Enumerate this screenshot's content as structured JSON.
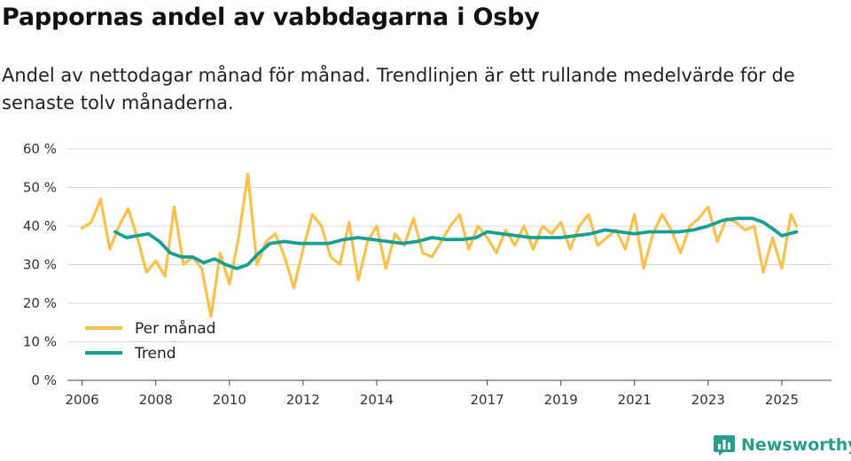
{
  "title": "Pappornas andel av vabbdagarna i Osby",
  "subtitle": "Andel av nettodagar månad för månad. Trendlinjen är ett rullande medelvärde för de senaste tolv månaderna.",
  "brand": {
    "name": "Newsworthy"
  },
  "colors": {
    "monthly": "#FDC04C",
    "trend": "#14A095",
    "grid": "#d9d9d9",
    "axis": "#444444",
    "brand": "#2a9d8f"
  },
  "chart_data": {
    "type": "line",
    "title": "Pappornas andel av vabbdagarna i Osby",
    "xlabel": "",
    "ylabel": "",
    "ylim": [
      0,
      60
    ],
    "xlim": [
      2005.6,
      2026.35
    ],
    "y_ticks": [
      {
        "value": 0,
        "label": "0 %"
      },
      {
        "value": 10,
        "label": "10 %"
      },
      {
        "value": 20,
        "label": "20 %"
      },
      {
        "value": 30,
        "label": "30 %"
      },
      {
        "value": 40,
        "label": "40 %"
      },
      {
        "value": 50,
        "label": "50 %"
      },
      {
        "value": 60,
        "label": "60 %"
      }
    ],
    "x_ticks": [
      {
        "value": 2006,
        "label": "2006"
      },
      {
        "value": 2008,
        "label": "2008"
      },
      {
        "value": 2010,
        "label": "2010"
      },
      {
        "value": 2012,
        "label": "2012"
      },
      {
        "value": 2014,
        "label": "2014"
      },
      {
        "value": 2017,
        "label": "2017"
      },
      {
        "value": 2019,
        "label": "2019"
      },
      {
        "value": 2021,
        "label": "2021"
      },
      {
        "value": 2023,
        "label": "2023"
      },
      {
        "value": 2025,
        "label": "2025"
      }
    ],
    "legend": {
      "position": "bottom-left",
      "entries": [
        "Per månad",
        "Trend"
      ]
    },
    "series": [
      {
        "name": "Per månad",
        "x": [
          2006.0,
          2006.25,
          2006.5,
          2006.75,
          2007.0,
          2007.25,
          2007.5,
          2007.75,
          2008.0,
          2008.25,
          2008.5,
          2008.75,
          2009.0,
          2009.25,
          2009.5,
          2009.75,
          2010.0,
          2010.25,
          2010.5,
          2010.75,
          2011.0,
          2011.25,
          2011.5,
          2011.75,
          2012.0,
          2012.25,
          2012.5,
          2012.75,
          2013.0,
          2013.25,
          2013.5,
          2013.75,
          2014.0,
          2014.25,
          2014.5,
          2014.75,
          2015.0,
          2015.25,
          2015.5,
          2015.75,
          2016.0,
          2016.25,
          2016.5,
          2016.75,
          2017.0,
          2017.25,
          2017.5,
          2017.75,
          2018.0,
          2018.25,
          2018.5,
          2018.75,
          2019.0,
          2019.25,
          2019.5,
          2019.75,
          2020.0,
          2020.25,
          2020.5,
          2020.75,
          2021.0,
          2021.25,
          2021.5,
          2021.75,
          2022.0,
          2022.25,
          2022.5,
          2022.75,
          2023.0,
          2023.25,
          2023.5,
          2023.75,
          2024.0,
          2024.25,
          2024.5,
          2024.75,
          2025.0,
          2025.25,
          2025.4
        ],
        "values": [
          39.5,
          41,
          47,
          34,
          40,
          44.5,
          37,
          28,
          31,
          27,
          45,
          30,
          32,
          29,
          16.5,
          33,
          25,
          37,
          53.5,
          30,
          36,
          38,
          32,
          24,
          34,
          43,
          40,
          32,
          30,
          41,
          26,
          36,
          40,
          29,
          38,
          35,
          42,
          33,
          32,
          36,
          40,
          43,
          34,
          40,
          37,
          33,
          39,
          35,
          40,
          34,
          40,
          38,
          41,
          34,
          40,
          43,
          35,
          37,
          39,
          34,
          43,
          29,
          38,
          43,
          39,
          33,
          40,
          42,
          45,
          36,
          42,
          41,
          39,
          40,
          28,
          37,
          29,
          43,
          40
        ]
      },
      {
        "name": "Trend",
        "x": [
          2006.9,
          2007.2,
          2007.5,
          2007.8,
          2008.1,
          2008.4,
          2008.7,
          2009.0,
          2009.3,
          2009.6,
          2009.9,
          2010.2,
          2010.5,
          2010.8,
          2011.1,
          2011.5,
          2011.9,
          2012.3,
          2012.7,
          2013.1,
          2013.5,
          2013.9,
          2014.3,
          2014.7,
          2015.1,
          2015.5,
          2015.9,
          2016.3,
          2016.7,
          2017.0,
          2017.4,
          2017.8,
          2018.2,
          2018.6,
          2019.0,
          2019.4,
          2019.8,
          2020.2,
          2020.6,
          2021.0,
          2021.4,
          2021.8,
          2022.2,
          2022.6,
          2023.0,
          2023.4,
          2023.8,
          2024.2,
          2024.5,
          2024.8,
          2025.0,
          2025.2,
          2025.4
        ],
        "values": [
          38.5,
          37,
          37.5,
          38,
          36,
          33,
          32,
          32,
          30.5,
          31.5,
          30,
          29,
          30,
          33,
          35.5,
          36,
          35.5,
          35.5,
          35.5,
          36.5,
          37,
          36.5,
          36,
          35.5,
          36,
          37,
          36.5,
          36.5,
          37,
          38.5,
          38,
          37.5,
          37,
          37,
          37,
          37.5,
          38,
          39,
          38.5,
          38,
          38.5,
          38.5,
          38.5,
          39,
          40,
          41.5,
          42,
          42,
          41,
          39,
          37.5,
          38,
          38.5
        ]
      }
    ]
  }
}
